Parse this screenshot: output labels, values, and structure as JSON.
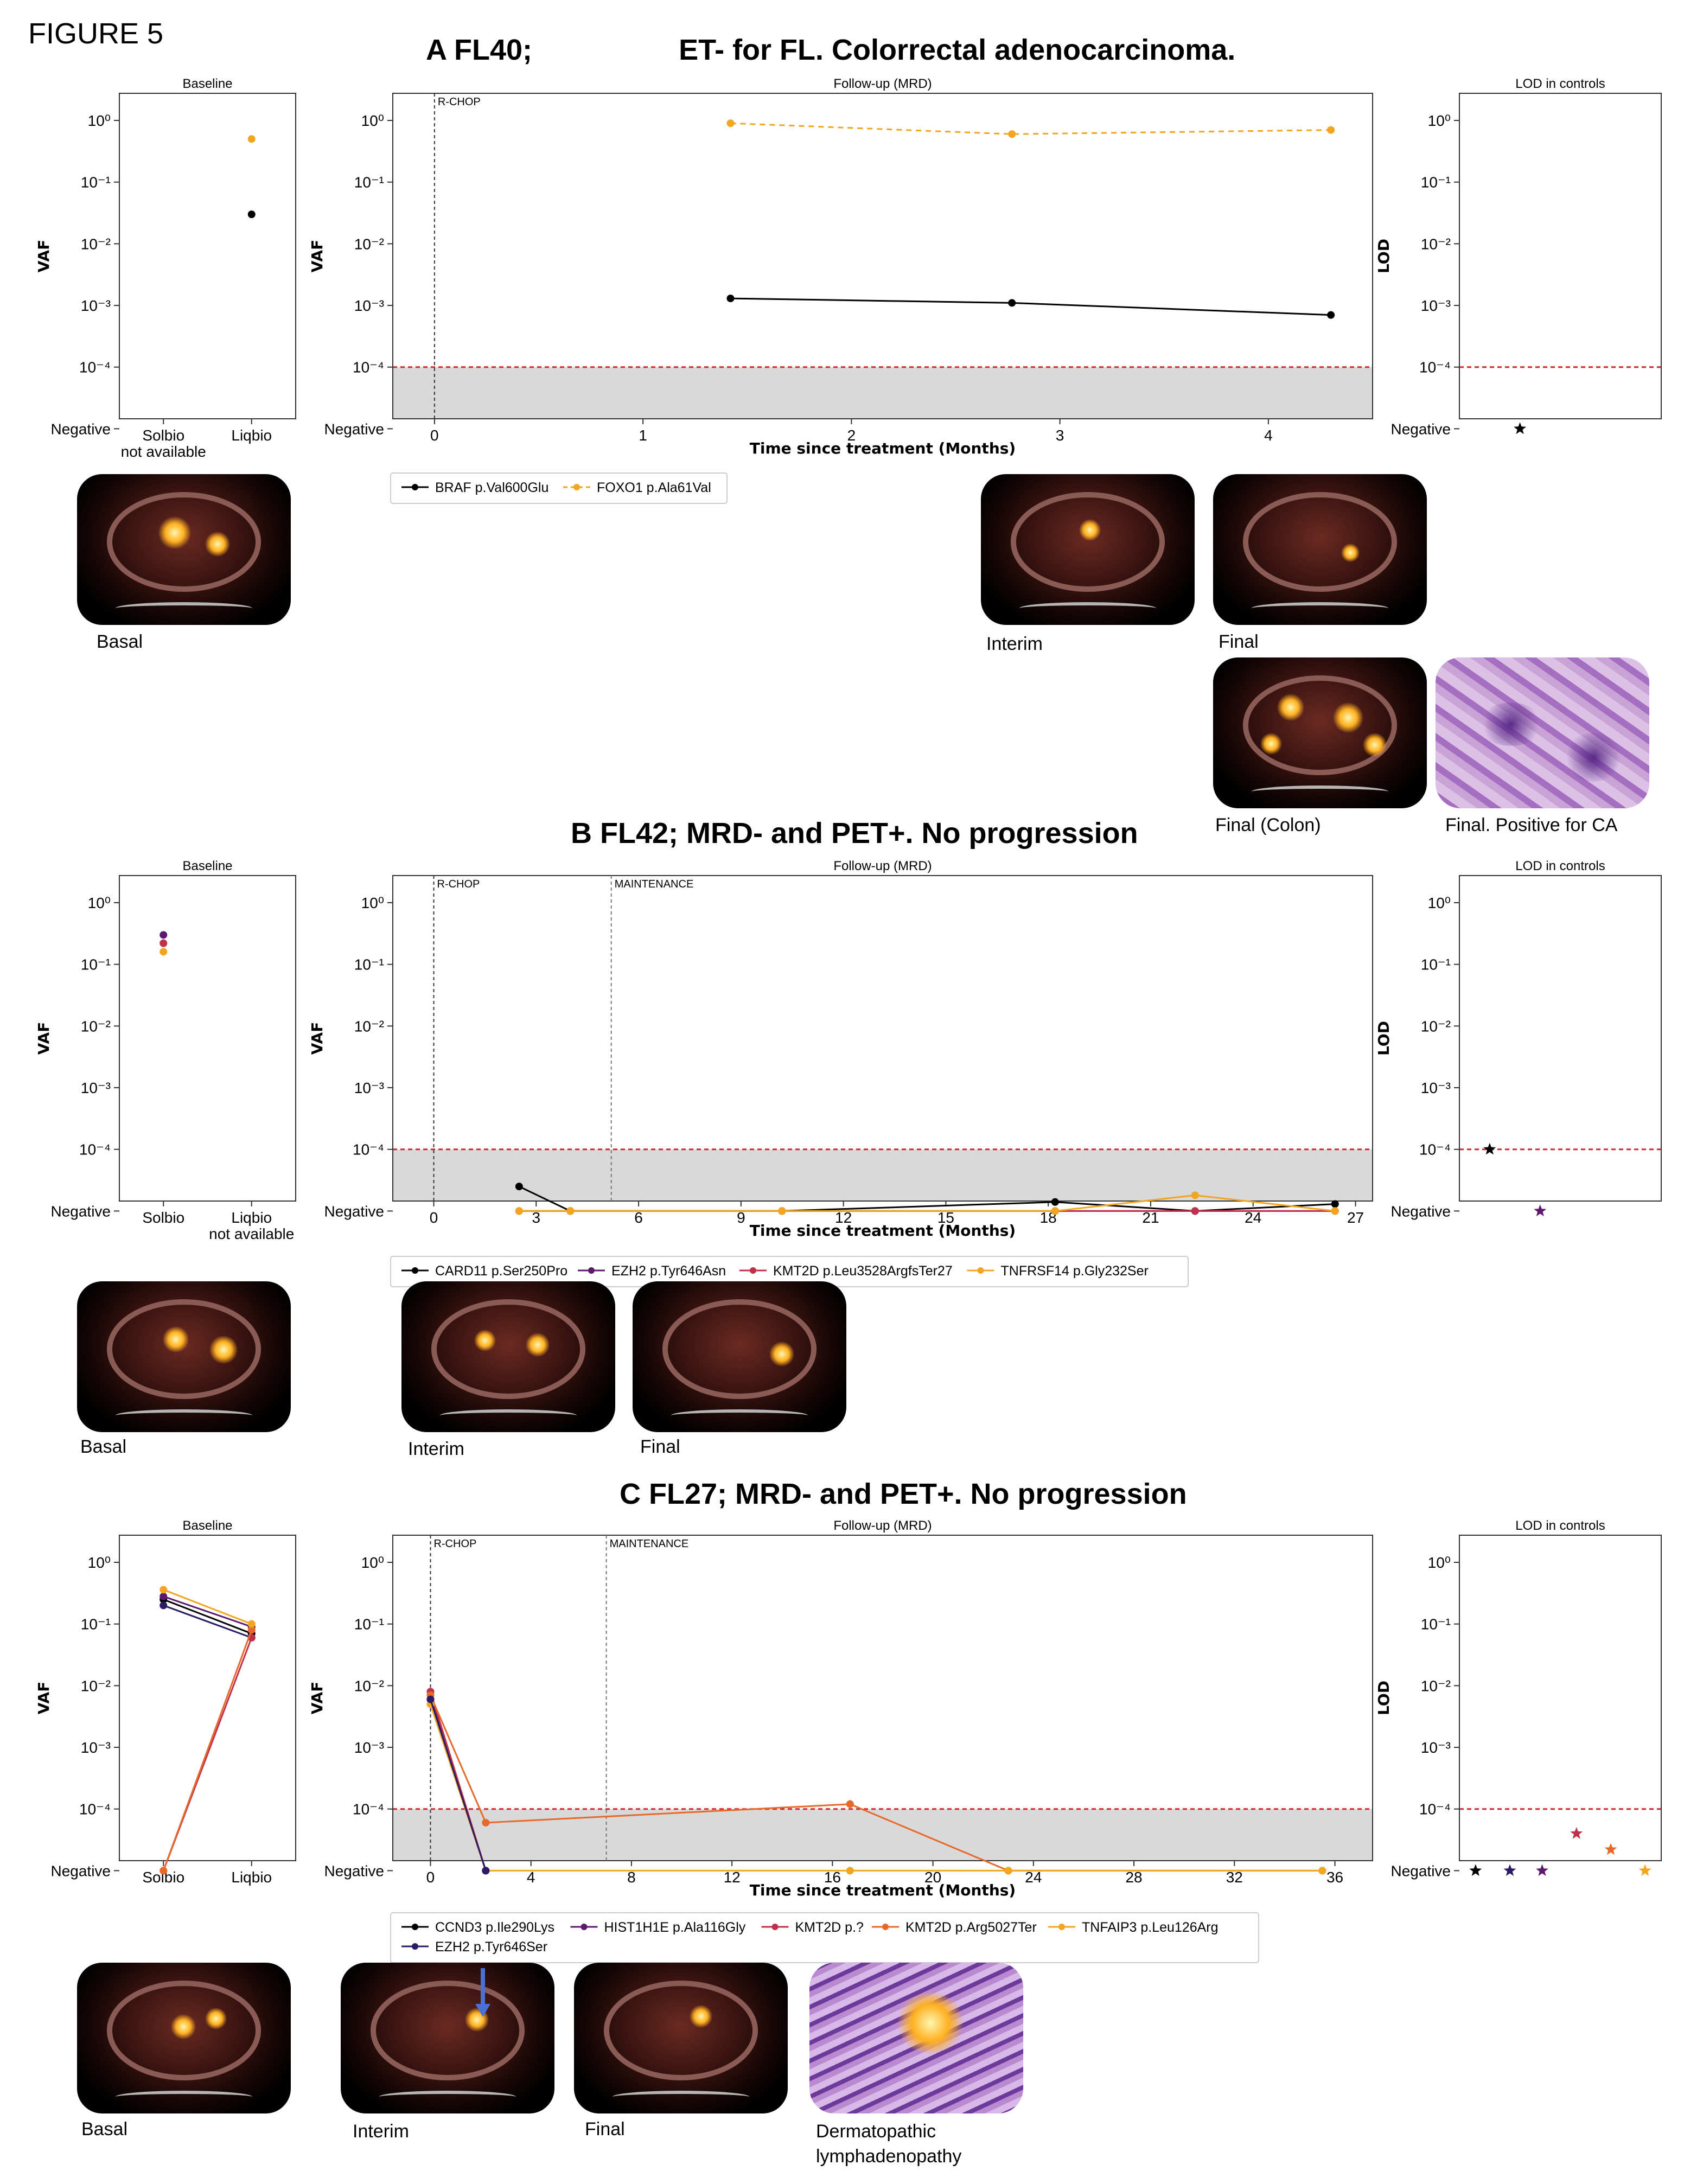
{
  "figure_label": "FIGURE 5",
  "colors": {
    "black": "#000000",
    "purple": "#5b1a6e",
    "indigo": "#2b1a66",
    "red": "#c0304a",
    "orange": "#e8682a",
    "gold": "#f2a51e",
    "lod_line": "#d62728",
    "shade": "#d9d9d9"
  },
  "panel_titles": [
    "Baseline",
    "Follow-up (MRD)",
    "LOD in controls"
  ],
  "y_ticks": [
    "10⁰",
    "10⁻¹",
    "10⁻²",
    "10⁻³",
    "10⁻⁴",
    "Negative"
  ],
  "axis_labels": {
    "vaf": "VAF",
    "lod": "LOD",
    "time": "Time since treatment (Months)"
  },
  "captions": {
    "a_basal": "Basal",
    "a_interim": "Interim",
    "a_final": "Final",
    "a_final_colon": "Final (Colon)",
    "a_final_ca": "Final. Positive for CA",
    "b_basal": "Basal",
    "b_interim": "Interim",
    "b_final": "Final",
    "c_basal": "Basal",
    "c_interim": "Interim",
    "c_final": "Final",
    "c_derma1": "Dermatopathic",
    "c_derma2": "lymphadenopathy"
  },
  "chart_data": [
    {
      "type": "line",
      "id": "A",
      "title": "A FL40;                  ET- for FL. Colorrectal adenocarcinoma.",
      "baseline": {
        "categories": [
          "Solbio",
          "Liqbio"
        ],
        "category_notes": [
          "not available",
          ""
        ],
        "points": [
          {
            "series": "BRAF p.Val600Glu",
            "category": "Liqbio",
            "value": 0.03
          },
          {
            "series": "FOXO1 p.Ala61Val",
            "category": "Liqbio",
            "value": 0.5
          }
        ]
      },
      "followup": {
        "xlim": [
          -0.2,
          4.5
        ],
        "xticks": [
          0,
          1,
          2,
          3,
          4
        ],
        "treatment_lines": [
          {
            "x": 0,
            "label": "R-CHOP"
          }
        ],
        "series": [
          {
            "name": "BRAF p.Val600Glu",
            "color": "black",
            "dash": "none",
            "x": [
              1.42,
              2.77,
              4.3
            ],
            "y": [
              0.0013,
              0.0011,
              0.0007
            ],
            "err": [
              0,
              0,
              0
            ]
          },
          {
            "name": "FOXO1 p.Ala61Val",
            "color": "gold",
            "dash": "dashed",
            "x": [
              1.42,
              2.77,
              4.3
            ],
            "y": [
              0.9,
              0.6,
              0.7
            ],
            "err": [
              0,
              0,
              0
            ]
          }
        ]
      },
      "lod": {
        "points": [
          {
            "value": "neg",
            "color": "black",
            "pos": 0.3
          }
        ]
      }
    },
    {
      "type": "line",
      "id": "B",
      "title": "B FL42; MRD- and PET+. No progression",
      "baseline": {
        "categories": [
          "Solbio",
          "Liqbio"
        ],
        "category_notes": [
          "",
          "not available"
        ],
        "points": [
          {
            "series": "EZH2 p.Tyr646Asn",
            "category": "Solbio",
            "value": 0.3
          },
          {
            "series": "KMT2D p.Leu3528ArgfsTer27",
            "category": "Solbio",
            "value": 0.22
          },
          {
            "series": "TNFRSF14 p.Gly232Ser",
            "category": "Solbio",
            "value": 0.16
          }
        ]
      },
      "followup": {
        "xlim": [
          -1.2,
          27.5
        ],
        "xticks": [
          0,
          3,
          6,
          9,
          12,
          15,
          18,
          21,
          24,
          27
        ],
        "treatment_lines": [
          {
            "x": 0,
            "label": "R-CHOP"
          },
          {
            "x": 5.2,
            "label": "MAINTENANCE"
          }
        ],
        "series": [
          {
            "name": "CARD11 p.Ser250Pro",
            "color": "black",
            "dash": "none",
            "x": [
              2.5,
              4.0,
              10.2,
              18.2,
              22.3,
              26.4
            ],
            "y": [
              2.5e-05,
              "neg",
              "neg",
              1.4e-05,
              "neg",
              1.3e-05
            ],
            "err": [
              3e-06,
              0,
              0,
              0,
              0,
              0
            ]
          },
          {
            "name": "EZH2 p.Tyr646Asn",
            "color": "purple",
            "dash": "none",
            "x": [
              2.5,
              4.0,
              10.2,
              18.2,
              22.3,
              26.4
            ],
            "y": [
              "neg",
              "neg",
              "neg",
              "neg",
              "neg",
              "neg"
            ],
            "err": [
              0,
              0,
              0,
              0,
              0,
              0
            ]
          },
          {
            "name": "KMT2D p.Leu3528ArgfsTer27",
            "color": "red",
            "dash": "none",
            "x": [
              2.5,
              4.0,
              10.2,
              18.2,
              22.3,
              26.4
            ],
            "y": [
              "neg",
              "neg",
              "neg",
              "neg",
              "neg",
              "neg"
            ],
            "err": [
              0,
              0,
              0,
              0,
              0,
              0
            ]
          },
          {
            "name": "TNFRSF14 p.Gly232Ser",
            "color": "gold",
            "dash": "none",
            "x": [
              2.5,
              4.0,
              10.2,
              18.2,
              22.3,
              26.4
            ],
            "y": [
              "neg",
              "neg",
              "neg",
              "neg",
              1.8e-05,
              "neg"
            ],
            "err": [
              0,
              0,
              0,
              0,
              0,
              0
            ]
          }
        ]
      },
      "lod": {
        "points": [
          {
            "value": 0.0001,
            "color": "black",
            "pos": 0.15
          },
          {
            "value": "neg",
            "color": "purple",
            "pos": 0.4
          }
        ]
      }
    },
    {
      "type": "line",
      "id": "C",
      "title": "C FL27; MRD- and PET+. No progression",
      "baseline": {
        "categories": [
          "Solbio",
          "Liqbio"
        ],
        "category_notes": [
          "",
          ""
        ],
        "lines": [
          {
            "series": "CCND3 p.Ile290Lys",
            "color": "black",
            "values": [
              0.25,
              0.07
            ]
          },
          {
            "series": "EZH2 p.Tyr646Ser",
            "color": "indigo",
            "values": [
              0.2,
              0.06
            ]
          },
          {
            "series": "HIST1H1E p.Ala116Gly",
            "color": "purple",
            "values": [
              0.28,
              0.09
            ]
          },
          {
            "series": "KMT2D p.?",
            "color": "red",
            "values": [
              "neg",
              0.06
            ]
          },
          {
            "series": "KMT2D p.Arg5027Ter",
            "color": "orange",
            "values": [
              "neg",
              0.08
            ]
          },
          {
            "series": "TNFAIP3 p.Leu126Arg",
            "color": "gold",
            "values": [
              0.36,
              0.1
            ]
          }
        ]
      },
      "followup": {
        "xlim": [
          -1.5,
          37.5
        ],
        "xticks": [
          0,
          4,
          8,
          12,
          16,
          20,
          24,
          28,
          32,
          36
        ],
        "treatment_lines": [
          {
            "x": 0,
            "label": "R-CHOP"
          },
          {
            "x": 7,
            "label": "MAINTENANCE"
          }
        ],
        "series": [
          {
            "name": "CCND3 p.Ile290Lys",
            "color": "black",
            "dash": "none",
            "x": [
              0,
              2.2
            ],
            "y": [
              0.006,
              "neg"
            ],
            "err": [
              0,
              0
            ]
          },
          {
            "name": "HIST1H1E p.Ala116Gly",
            "color": "purple",
            "dash": "none",
            "x": [
              0,
              2.2
            ],
            "y": [
              0.007,
              "neg"
            ],
            "err": [
              0,
              0
            ]
          },
          {
            "name": "KMT2D p.?",
            "color": "red",
            "dash": "none",
            "x": [
              0,
              2.2
            ],
            "y": [
              0.008,
              "neg"
            ],
            "err": [
              0,
              0
            ]
          },
          {
            "name": "KMT2D p.Arg5027Ter",
            "color": "orange",
            "dash": "none",
            "x": [
              0,
              2.2,
              16.7,
              23,
              35.5
            ],
            "y": [
              0.007,
              6e-05,
              0.00012,
              "neg",
              "neg"
            ],
            "err": [
              0,
              0,
              2e-05,
              0,
              0
            ]
          },
          {
            "name": "TNFAIP3 p.Leu126Arg",
            "color": "gold",
            "dash": "none",
            "x": [
              0,
              2.2,
              16.7,
              23,
              35.5
            ],
            "y": [
              0.005,
              "neg",
              "neg",
              "neg",
              "neg"
            ],
            "err": [
              0,
              0,
              0,
              0,
              0
            ]
          },
          {
            "name": "EZH2 p.Tyr646Ser",
            "color": "indigo",
            "dash": "none",
            "x": [
              0,
              2.2
            ],
            "y": [
              0.006,
              "neg"
            ],
            "err": [
              0,
              0
            ]
          }
        ]
      },
      "lod": {
        "points": [
          {
            "value": "neg",
            "color": "black",
            "pos": 0.08
          },
          {
            "value": "neg",
            "color": "indigo",
            "pos": 0.25
          },
          {
            "value": "neg",
            "color": "purple",
            "pos": 0.41
          },
          {
            "value": 4e-05,
            "color": "red",
            "pos": 0.58
          },
          {
            "value": 2.2e-05,
            "color": "orange",
            "pos": 0.75
          },
          {
            "value": "neg",
            "color": "gold",
            "pos": 0.92
          }
        ]
      }
    }
  ]
}
